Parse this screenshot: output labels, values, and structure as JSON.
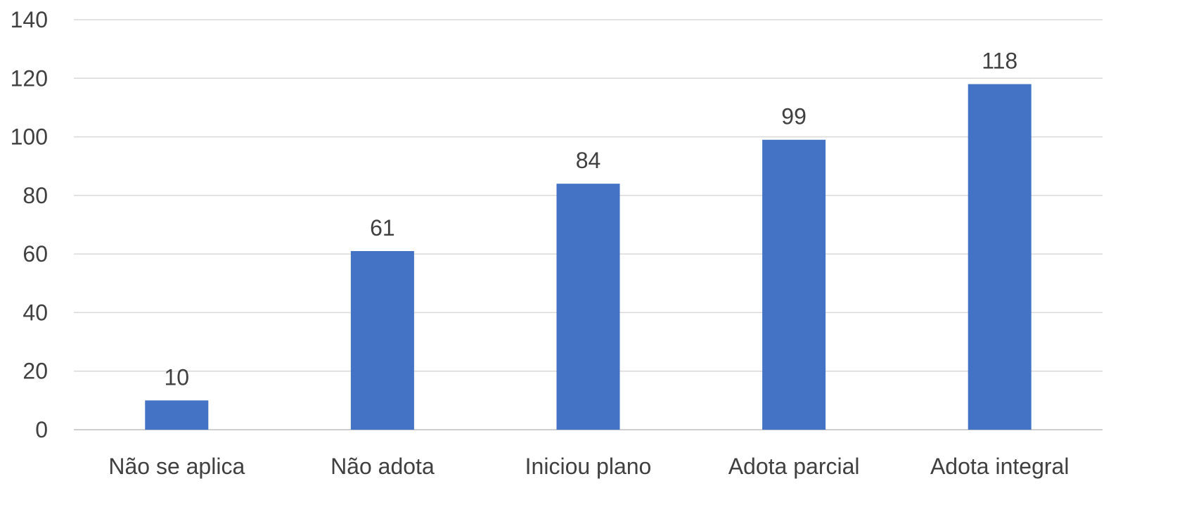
{
  "chart_data": {
    "type": "bar",
    "title": "",
    "xlabel": "",
    "ylabel": "",
    "categories": [
      "Não se aplica",
      "Não adota",
      "Iniciou plano",
      "Adota parcial",
      "Adota integral"
    ],
    "values": [
      10,
      61,
      84,
      99,
      118
    ],
    "ylim": [
      0,
      140
    ],
    "yticks": [
      0,
      20,
      40,
      60,
      80,
      100,
      120,
      140
    ],
    "grid": true,
    "legend": "none",
    "bar_color": "#4472c4",
    "data_labels": true
  }
}
